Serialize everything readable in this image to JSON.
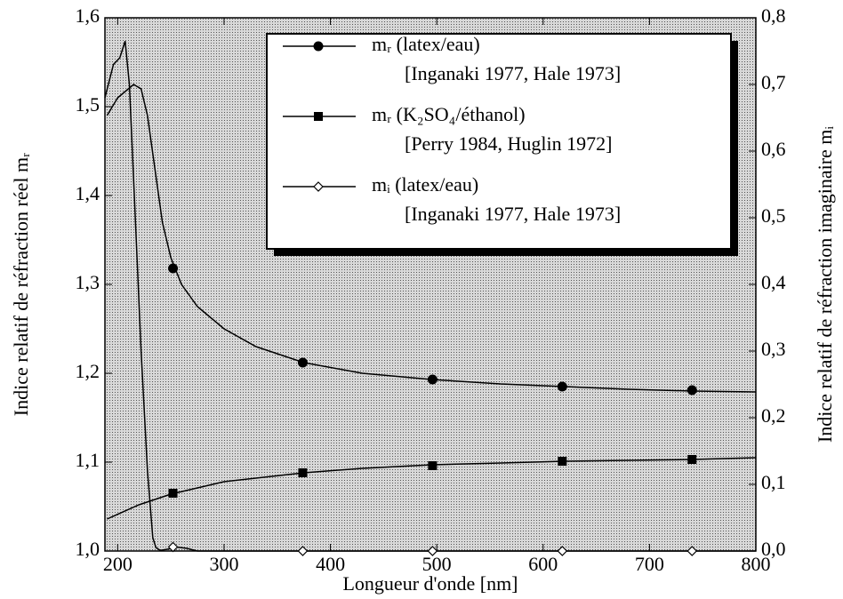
{
  "chart_data": {
    "type": "line",
    "xlabel": "Longueur d'onde [nm]",
    "ylabel": "Indice relatif de réfraction réel mᵣ",
    "y2label": "Indice relatif de réfraction imaginaire mᵢ",
    "xlim": [
      188,
      800
    ],
    "xticks": [
      200,
      300,
      400,
      500,
      600,
      700,
      800
    ],
    "ylim": [
      1.0,
      1.6
    ],
    "yticks": [
      {
        "value": 1.0,
        "label": "1,0"
      },
      {
        "value": 1.1,
        "label": "1,1"
      },
      {
        "value": 1.2,
        "label": "1,2"
      },
      {
        "value": 1.3,
        "label": "1,3"
      },
      {
        "value": 1.4,
        "label": "1,4"
      },
      {
        "value": 1.5,
        "label": "1,5"
      },
      {
        "value": 1.6,
        "label": "1,6"
      }
    ],
    "y2lim": [
      0.0,
      0.8
    ],
    "y2ticks": [
      {
        "value": 0.0,
        "label": "0,0"
      },
      {
        "value": 0.1,
        "label": "0,1"
      },
      {
        "value": 0.2,
        "label": "0,2"
      },
      {
        "value": 0.3,
        "label": "0,3"
      },
      {
        "value": 0.4,
        "label": "0,4"
      },
      {
        "value": 0.5,
        "label": "0,5"
      },
      {
        "value": 0.6,
        "label": "0,6"
      },
      {
        "value": 0.7,
        "label": "0,7"
      },
      {
        "value": 0.8,
        "label": "0,8"
      }
    ],
    "series": [
      {
        "name": "mᵣ (latex/eau)",
        "note": "[Inganaki 1977, Hale 1973]",
        "color": "#000000",
        "marker": "filled-circle",
        "x": [
          190,
          200,
          210,
          215,
          222,
          228,
          235,
          242,
          250,
          260,
          275,
          300,
          330,
          375,
          430,
          495,
          560,
          620,
          680,
          740,
          800
        ],
        "values": [
          1.49,
          1.51,
          1.52,
          1.525,
          1.52,
          1.49,
          1.43,
          1.37,
          1.33,
          1.3,
          1.275,
          1.25,
          1.23,
          1.212,
          1.2,
          1.193,
          1.188,
          1.185,
          1.182,
          1.18,
          1.179
        ],
        "points": {
          "x": [
            252,
            374,
            496,
            618,
            740
          ],
          "values": [
            1.318,
            1.212,
            1.193,
            1.185,
            1.181
          ]
        }
      },
      {
        "name": "mᵣ (K₂SO₄/éthanol)",
        "note": "[Perry 1984, Huglin 1972]",
        "color": "#000000",
        "marker": "filled-square",
        "x": [
          190,
          220,
          250,
          300,
          375,
          430,
          495,
          560,
          620,
          680,
          740,
          800
        ],
        "values": [
          1.036,
          1.052,
          1.064,
          1.078,
          1.088,
          1.093,
          1.097,
          1.099,
          1.101,
          1.102,
          1.103,
          1.105
        ],
        "points": {
          "x": [
            252,
            374,
            496,
            618,
            740
          ],
          "values": [
            1.065,
            1.088,
            1.096,
            1.101,
            1.103
          ]
        }
      },
      {
        "name": "mᵢ (latex/eau)",
        "note": "[Inganaki 1977, Hale 1973]",
        "color": "#000000",
        "marker": "open-diamond",
        "axis": "y2",
        "x": [
          188,
          196,
          202,
          207,
          211,
          216,
          222,
          228,
          233,
          236,
          240,
          248,
          255,
          265,
          275,
          800
        ],
        "values": [
          0.68,
          0.73,
          0.74,
          0.765,
          0.7,
          0.52,
          0.3,
          0.12,
          0.02,
          0.005,
          0.001,
          0.003,
          0.006,
          0.004,
          0.0,
          0.0
        ],
        "points": {
          "x": [
            252,
            374,
            496,
            618,
            740
          ],
          "values": [
            0.006,
            0.0,
            0.0,
            0.0,
            0.0
          ]
        }
      }
    ]
  }
}
